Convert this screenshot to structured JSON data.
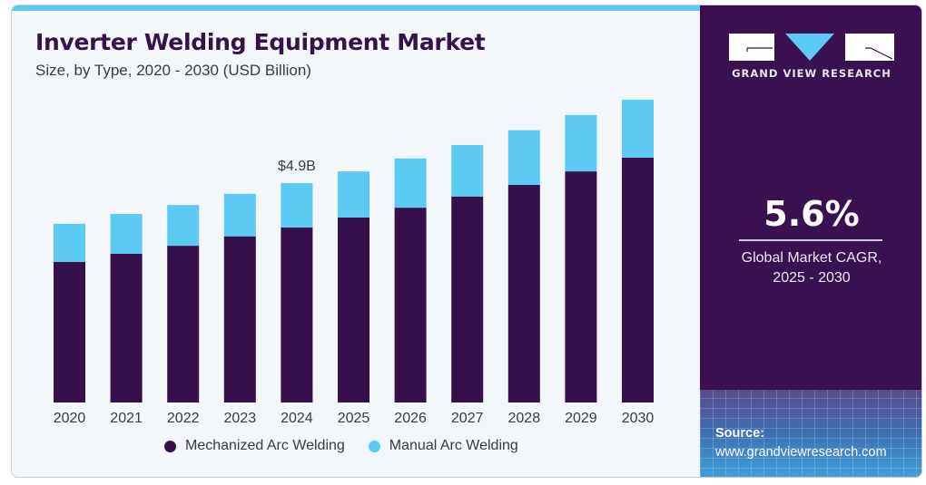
{
  "header": {
    "title": "Inverter Welding Equipment Market",
    "subtitle": "Size, by Type, 2020 - 2030 (USD Billion)"
  },
  "brand": {
    "name": "GRAND VIEW RESEARCH",
    "logo_icon": "gvr-logo-icon",
    "colors": {
      "panel": "#3a1050",
      "accent": "#5ccaf3",
      "mechanized": "#35104a",
      "manual": "#5ccaf3"
    }
  },
  "stat": {
    "cagr_value": "5.6%",
    "cagr_label_line1": "Global Market CAGR,",
    "cagr_label_line2": "2025 - 2030"
  },
  "source": {
    "label": "Source:",
    "url": "www.grandviewresearch.com"
  },
  "chart_data": {
    "type": "bar",
    "stacked": true,
    "title": "Inverter Welding Equipment Market",
    "subtitle": "Size, by Type, 2020 - 2030 (USD Billion)",
    "xlabel": "",
    "ylabel": "USD Billion",
    "categories": [
      "2020",
      "2021",
      "2022",
      "2023",
      "2024",
      "2025",
      "2026",
      "2027",
      "2028",
      "2029",
      "2030"
    ],
    "series": [
      {
        "name": "Mechanized Arc Welding",
        "color": "#35104a",
        "values": [
          3.14,
          3.32,
          3.5,
          3.71,
          3.91,
          4.13,
          4.35,
          4.6,
          4.86,
          5.16,
          5.47
        ]
      },
      {
        "name": "Manual Arc Welding",
        "color": "#5ccaf3",
        "values": [
          0.85,
          0.89,
          0.91,
          0.95,
          0.99,
          1.03,
          1.1,
          1.15,
          1.22,
          1.26,
          1.29
        ]
      }
    ],
    "annotations": [
      {
        "category": "2024",
        "text": "$4.9B"
      }
    ],
    "ylim": [
      0,
      7
    ],
    "grid": false,
    "legend_position": "bottom-center"
  }
}
